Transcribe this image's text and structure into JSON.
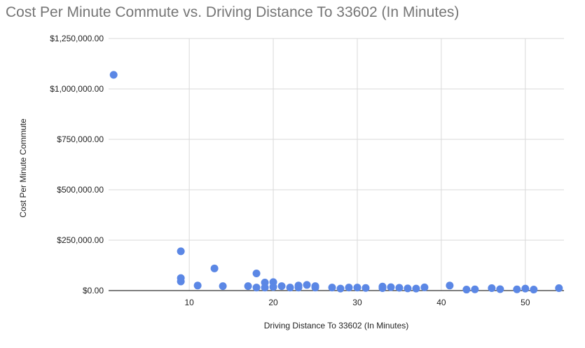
{
  "chart_data": {
    "type": "scatter",
    "title": "Cost Per Minute Commute vs. Driving Distance To 33602 (In Minutes)",
    "xlabel": "Driving Distance To 33602 (In Minutes)",
    "ylabel": "Cost Per Minute Commute",
    "xlim": [
      0.4,
      54.6
    ],
    "ylim": [
      0,
      1250000
    ],
    "xticks": [
      10,
      20,
      30,
      40,
      50
    ],
    "xtick_labels": [
      "10",
      "20",
      "30",
      "40",
      "50"
    ],
    "yticks": [
      0,
      250000,
      500000,
      750000,
      1000000,
      1250000
    ],
    "ytick_labels": [
      "$0.00",
      "$250,000.00",
      "$500,000.00",
      "$750,000.00",
      "$1,000,000.00",
      "$1,250,000.00"
    ],
    "grid": true,
    "color": "#5b87e5",
    "points": [
      [
        1,
        1070000
      ],
      [
        9,
        195000
      ],
      [
        9,
        62000
      ],
      [
        9,
        45000
      ],
      [
        11,
        25000
      ],
      [
        13,
        110000
      ],
      [
        14,
        22000
      ],
      [
        17,
        22000
      ],
      [
        18,
        85000
      ],
      [
        18,
        15000
      ],
      [
        19,
        40000
      ],
      [
        19,
        15000
      ],
      [
        20,
        42000
      ],
      [
        20,
        18000
      ],
      [
        21,
        22000
      ],
      [
        22,
        15000
      ],
      [
        23,
        25000
      ],
      [
        23,
        15000
      ],
      [
        24,
        28000
      ],
      [
        25,
        22000
      ],
      [
        25,
        15000
      ],
      [
        27,
        15000
      ],
      [
        28,
        10000
      ],
      [
        29,
        15000
      ],
      [
        30,
        15000
      ],
      [
        31,
        13000
      ],
      [
        33,
        20000
      ],
      [
        33,
        12000
      ],
      [
        34,
        17000
      ],
      [
        35,
        14000
      ],
      [
        36,
        11000
      ],
      [
        37,
        10000
      ],
      [
        38,
        16000
      ],
      [
        41,
        25000
      ],
      [
        43,
        5000
      ],
      [
        44,
        6000
      ],
      [
        46,
        12000
      ],
      [
        47,
        7000
      ],
      [
        49,
        6000
      ],
      [
        50,
        10000
      ],
      [
        51,
        5000
      ],
      [
        54,
        12000
      ]
    ]
  }
}
